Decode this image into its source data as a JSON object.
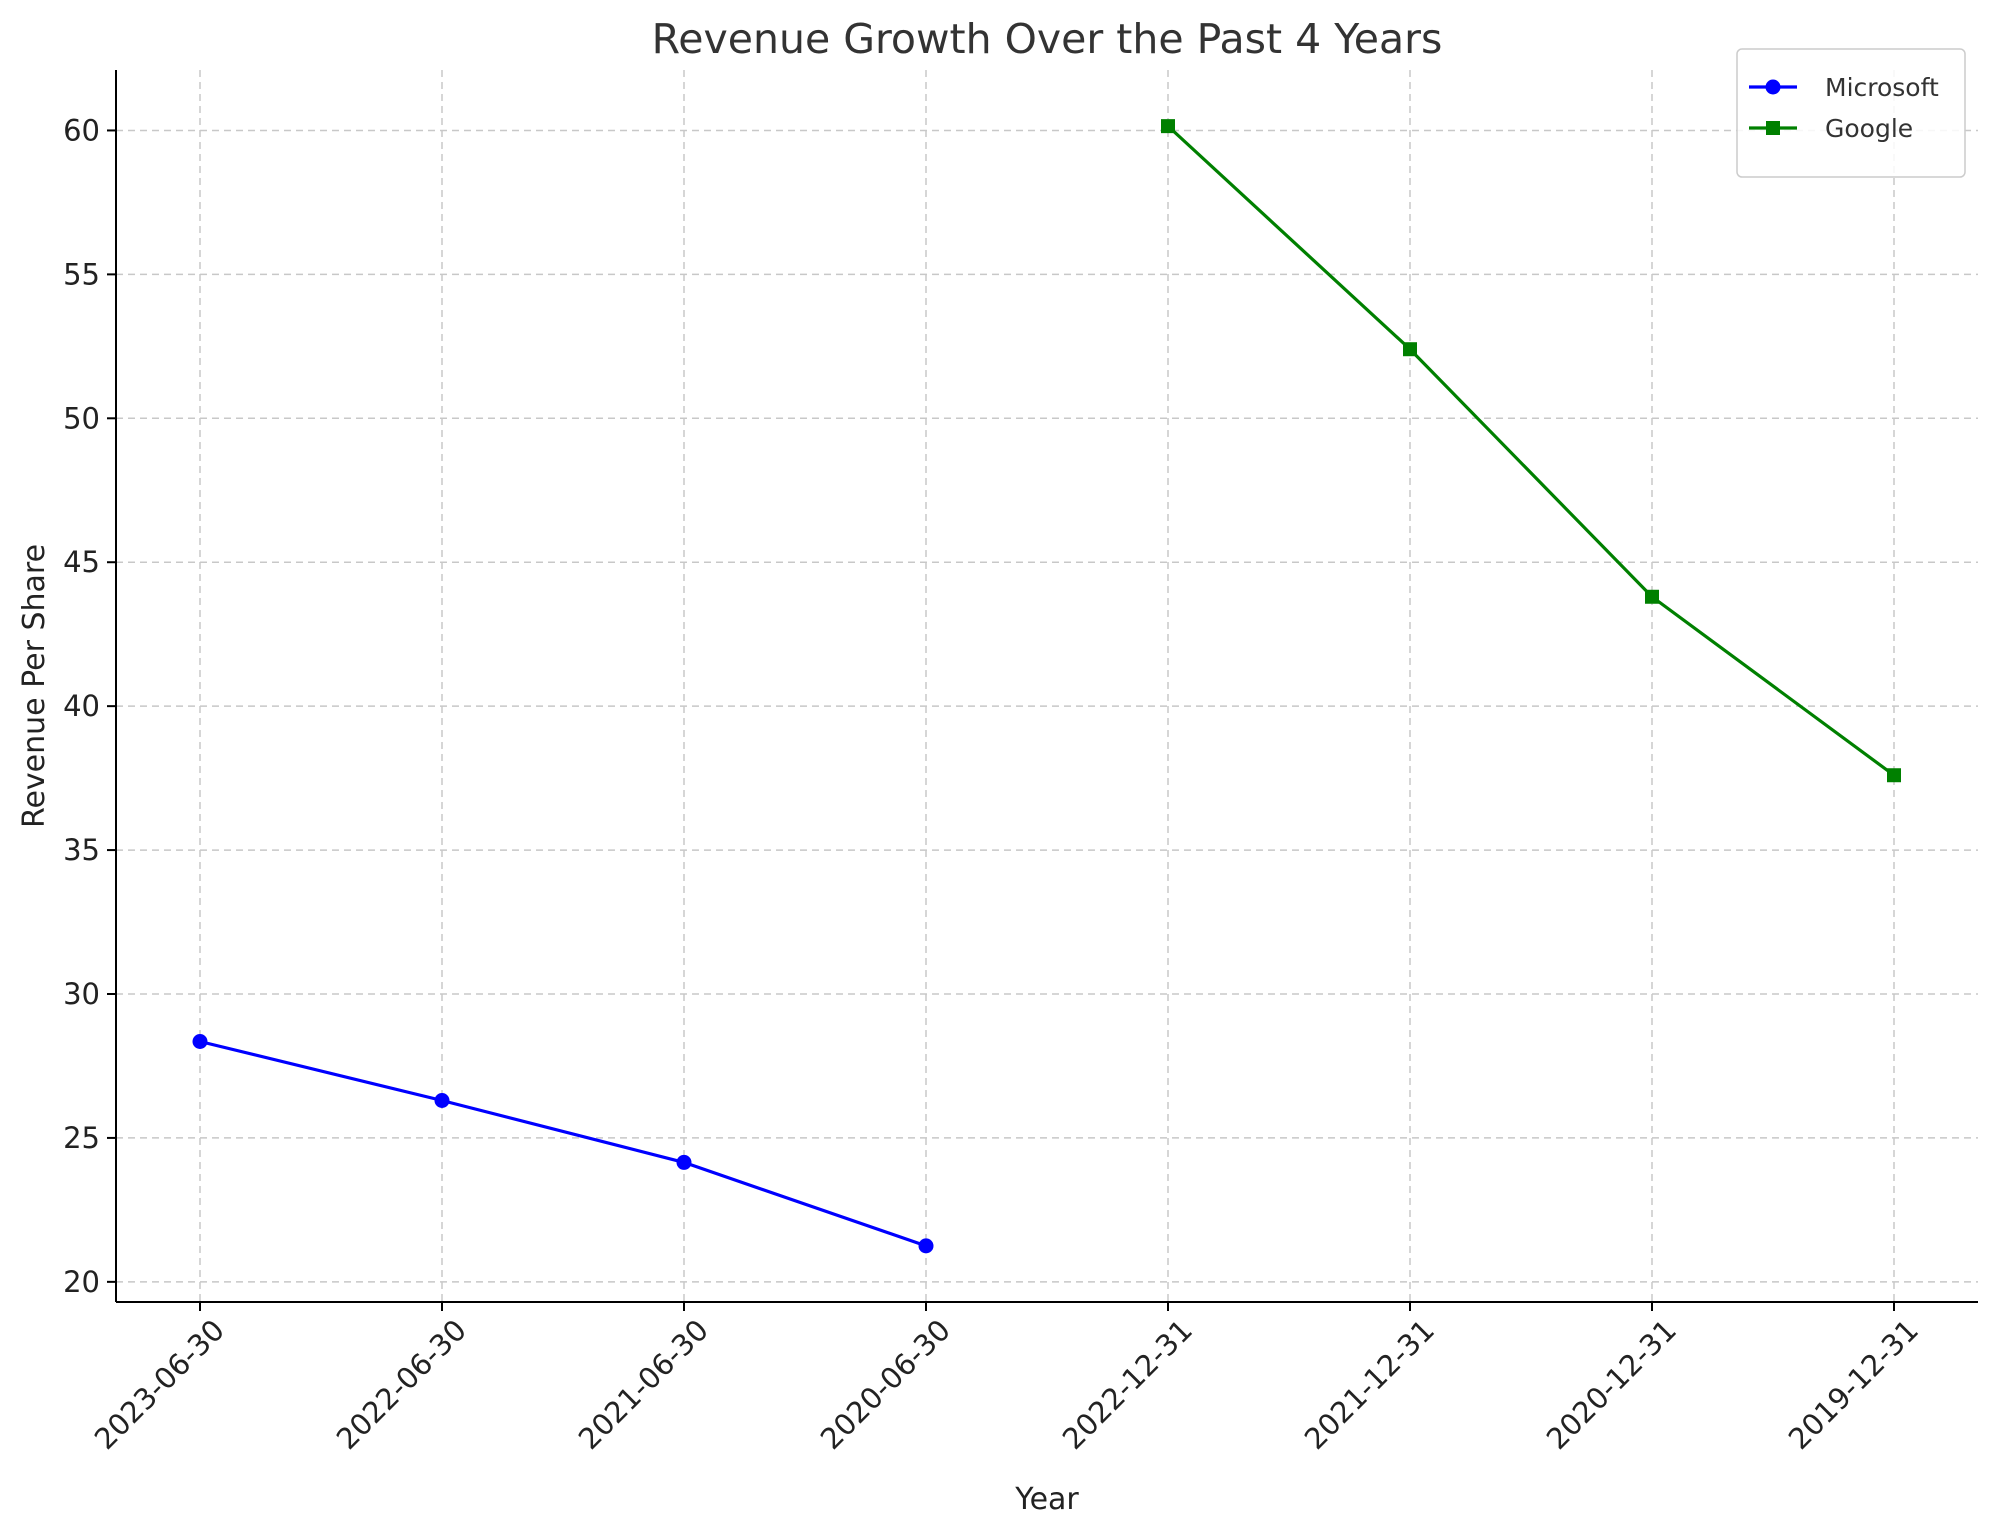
{
  "chart_data": {
    "type": "line",
    "title": "Revenue Growth Over the Past 4 Years",
    "xlabel": "Year",
    "ylabel": "Revenue Per Share",
    "categories": [
      "2023-06-30",
      "2022-06-30",
      "2021-06-30",
      "2020-06-30",
      "2022-12-31",
      "2021-12-31",
      "2020-12-31",
      "2019-12-31"
    ],
    "yticks": [
      20,
      25,
      30,
      35,
      40,
      45,
      50,
      55,
      60
    ],
    "ylim": [
      19.3,
      62.1
    ],
    "grid": true,
    "legend_position": "top-right",
    "series": [
      {
        "name": "Microsoft",
        "color": "#0000ff",
        "marker": "circle",
        "points": [
          {
            "x": "2023-06-30",
            "y": 28.35
          },
          {
            "x": "2022-06-30",
            "y": 26.3
          },
          {
            "x": "2021-06-30",
            "y": 24.15
          },
          {
            "x": "2020-06-30",
            "y": 21.25
          }
        ]
      },
      {
        "name": "Google",
        "color": "#008000",
        "marker": "square",
        "points": [
          {
            "x": "2022-12-31",
            "y": 60.15
          },
          {
            "x": "2021-12-31",
            "y": 52.4
          },
          {
            "x": "2020-12-31",
            "y": 43.8
          },
          {
            "x": "2019-12-31",
            "y": 37.6
          }
        ]
      }
    ]
  }
}
